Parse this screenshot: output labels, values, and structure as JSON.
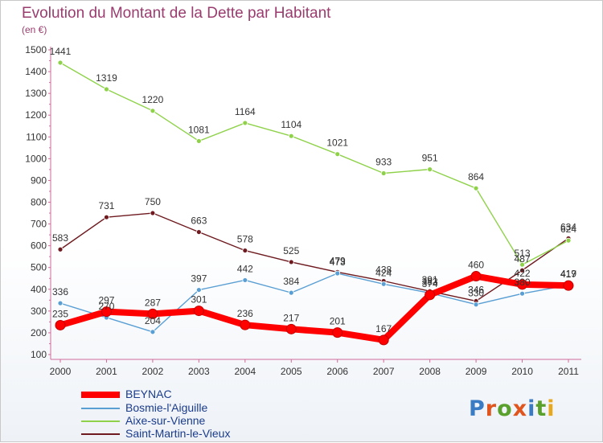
{
  "title": "Evolution du Montant de la Dette par Habitant",
  "subtitle": "(en €)",
  "logo": {
    "text": "Proxiti",
    "colors": [
      "#3a7cc4",
      "#e0551e",
      "#5aa02c",
      "#e0551e",
      "#3a7cc4",
      "#5aa02c",
      "#e8a81c"
    ]
  },
  "chart_data": {
    "type": "line",
    "x": [
      "2000",
      "2001",
      "2002",
      "2003",
      "2004",
      "2005",
      "2006",
      "2007",
      "2008",
      "2009",
      "2010",
      "2011"
    ],
    "ylim": [
      100,
      1500
    ],
    "yticks": [
      100,
      200,
      300,
      400,
      500,
      600,
      700,
      800,
      900,
      1000,
      1100,
      1200,
      1300,
      1400,
      1500
    ],
    "grid": false,
    "legend_position": "bottom-left",
    "series": [
      {
        "name": "Saint-Martin-le-Vieux",
        "color": "#6e1a1f",
        "values": [
          583,
          731,
          750,
          663,
          578,
          525,
          479,
          438,
          391,
          346,
          487,
          634
        ]
      },
      {
        "name": "Aixe-sur-Vienne",
        "color": "#8fd24a",
        "values": [
          1441,
          1319,
          1220,
          1081,
          1164,
          1104,
          1021,
          933,
          951,
          864,
          513,
          624
        ]
      },
      {
        "name": "Bosmie-l'Aiguille",
        "color": "#5a9fd4",
        "values": [
          336,
          270,
          204,
          397,
          442,
          384,
          473,
          424,
          383,
          330,
          380,
          419
        ]
      },
      {
        "name": "BEYNAC",
        "color": "#ff0000",
        "values": [
          235,
          297,
          287,
          301,
          236,
          217,
          201,
          167,
          374,
          460,
          422,
          417
        ]
      }
    ],
    "data_labels": [
      [
        "583",
        "731",
        "750",
        "663",
        "578",
        "525",
        "479",
        "438",
        "391",
        "346",
        "487",
        "634"
      ],
      [
        "1441",
        "1319",
        "1220",
        "1081",
        "1164",
        "1104",
        "1021",
        "933",
        "951",
        "864",
        "513",
        "624"
      ],
      [
        "336",
        "270",
        "204",
        "397",
        "442",
        "384",
        "473",
        "424",
        "383",
        "330",
        "380",
        "419"
      ],
      [
        "235",
        "297",
        "287",
        "301",
        "236",
        "217",
        "201",
        "167",
        "374",
        "460",
        "422",
        "417"
      ]
    ]
  },
  "legend": [
    {
      "label": "BEYNAC",
      "color": "#ff0000"
    },
    {
      "label": "Bosmie-l'Aiguille",
      "color": "#5a9fd4"
    },
    {
      "label": "Aixe-sur-Vienne",
      "color": "#8fd24a"
    },
    {
      "label": "Saint-Martin-le-Vieux",
      "color": "#6e1a1f"
    }
  ]
}
